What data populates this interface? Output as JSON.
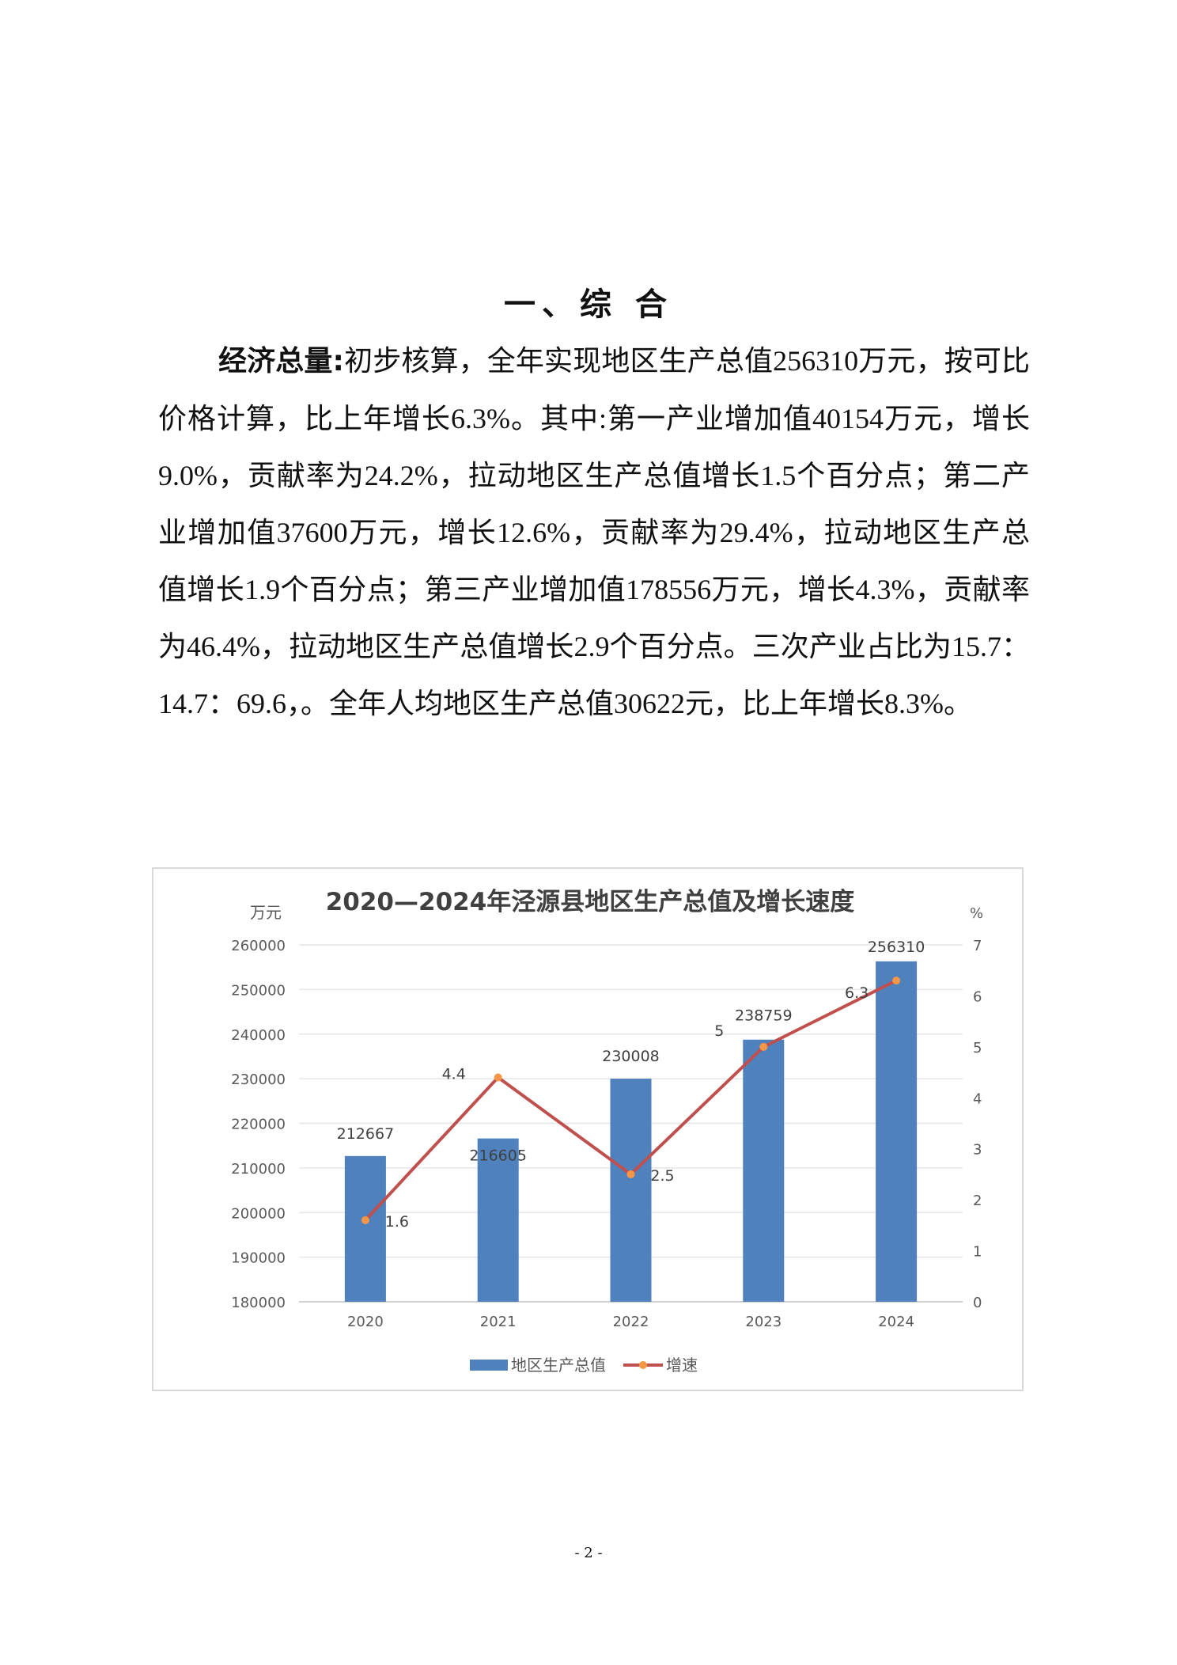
{
  "heading": "一、综 合",
  "paragraph": {
    "lead": "经济总量:",
    "text": "初步核算，全年实现地区生产总值256310万元，按可比价格计算，比上年增长6.3%。其中:第一产业增加值40154万元，增长9.0%，贡献率为24.2%，拉动地区生产总值增长1.5个百分点；第二产业增加值37600万元，增长12.6%，贡献率为29.4%，拉动地区生产总值增长1.9个百分点；第三产业增加值178556万元，增长4.3%，贡献率为46.4%，拉动地区生产总值增长2.9个百分点。三次产业占比为15.7：14.7：69.6，。全年人均地区生产总值30622元，比上年增长8.3%。"
  },
  "chart_data": {
    "type": "bar+line",
    "title": "2020—2024年泾源县地区生产总值及增长速度",
    "categories": [
      "2020",
      "2021",
      "2022",
      "2023",
      "2024"
    ],
    "left_axis": {
      "unit_label": "万元",
      "range": [
        180000,
        260000
      ],
      "ticks": [
        "180000",
        "190000",
        "200000",
        "210000",
        "220000",
        "230000",
        "240000",
        "250000",
        "260000"
      ]
    },
    "right_axis": {
      "unit_label": "%",
      "range": [
        0,
        7
      ],
      "ticks": [
        "0",
        "1",
        "2",
        "3",
        "4",
        "5",
        "6",
        "7"
      ]
    },
    "grid": true,
    "legend_position": "bottom",
    "series": [
      {
        "name": "地区生产总值",
        "type": "bar",
        "color": "#4f81bd",
        "values": [
          212667,
          216605,
          230008,
          238759,
          256310
        ]
      },
      {
        "name": "增速",
        "type": "line",
        "color": "#c0504d",
        "marker_color": "#f79646",
        "values": [
          1.6,
          4.4,
          2.5,
          5,
          6.3
        ]
      }
    ]
  },
  "page_number": "- 2 -"
}
